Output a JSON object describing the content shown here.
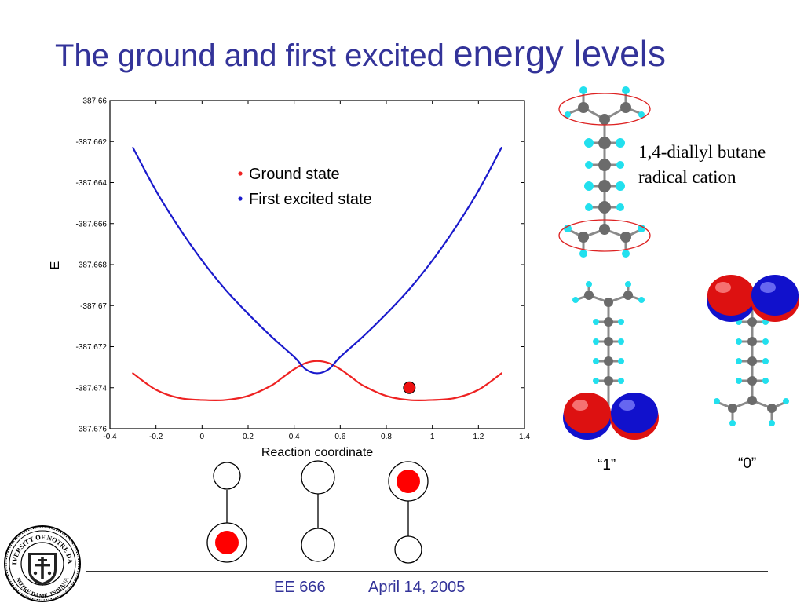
{
  "title": {
    "part1": "The ground and first excited ",
    "part2": "energy levels"
  },
  "chart_data": {
    "type": "line",
    "xlabel": "Reaction coordinate",
    "ylabel": "E",
    "xlim": [
      -0.4,
      1.4
    ],
    "ylim": [
      -387.676,
      -387.66
    ],
    "x_ticks": [
      "-0.4",
      "-0.2",
      "0",
      "0.2",
      "0.4",
      "0.6",
      "0.8",
      "1",
      "1.2",
      "1.4"
    ],
    "y_ticks": [
      "-387.66",
      "-387.662",
      "-387.664",
      "-387.666",
      "-387.668",
      "-387.67",
      "-387.672",
      "-387.674",
      "-387.676"
    ],
    "grid": false,
    "legend_position": "top-center",
    "series": [
      {
        "name": "Ground state",
        "color": "#ee2222",
        "x": [
          -0.3,
          -0.2,
          -0.1,
          0.0,
          0.1,
          0.2,
          0.3,
          0.35,
          0.4,
          0.45,
          0.5,
          0.55,
          0.6,
          0.65,
          0.7,
          0.8,
          0.9,
          1.0,
          1.1,
          1.2,
          1.3
        ],
        "y": [
          -387.6733,
          -387.6741,
          -387.6745,
          -387.6746,
          -387.6746,
          -387.6744,
          -387.6739,
          -387.6735,
          -387.6731,
          -387.6728,
          -387.6727,
          -387.6728,
          -387.6731,
          -387.6735,
          -387.6739,
          -387.6744,
          -387.6746,
          -387.6746,
          -387.6745,
          -387.6741,
          -387.6733
        ]
      },
      {
        "name": "First excited state",
        "color": "#1a1acc",
        "x": [
          -0.3,
          -0.2,
          -0.1,
          0.0,
          0.1,
          0.2,
          0.3,
          0.4,
          0.45,
          0.5,
          0.55,
          0.6,
          0.7,
          0.8,
          0.9,
          1.0,
          1.1,
          1.2,
          1.3
        ],
        "y": [
          -387.6623,
          -387.6644,
          -387.6662,
          -387.6678,
          -387.6692,
          -387.6704,
          -387.6715,
          -387.6725,
          -387.6731,
          -387.6733,
          -387.6731,
          -387.6725,
          -387.6715,
          -387.6704,
          -387.6692,
          -387.6678,
          -387.6662,
          -387.6644,
          -387.6623
        ]
      }
    ],
    "marker": {
      "x": 0.9,
      "y": -387.674,
      "color": "#ee1111"
    }
  },
  "molecule": {
    "name_line1": "1,4-diallyl butane",
    "name_line2": "radical cation",
    "label_one": "“1”",
    "label_zero": "“0”",
    "carbon_color": "#6b6b6b",
    "hydrogen_color": "#22e0ee",
    "orbital_red": "#dd1111",
    "orbital_blue": "#1111cc"
  },
  "states_diagram": {
    "occupied_color": "#ff0000"
  },
  "footer": {
    "course": "EE 666",
    "date": "April 14, 2005"
  },
  "seal": {
    "top_text": "UNIVERSITY OF NOTRE DAME",
    "bottom_text": "NOTRE DAME, INDIANA"
  }
}
